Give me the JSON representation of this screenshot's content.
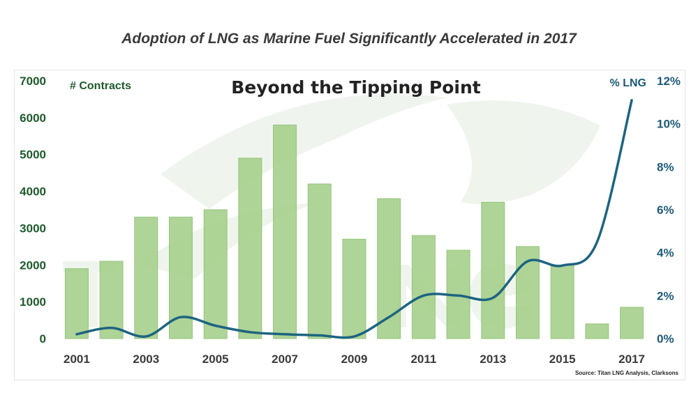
{
  "headline": "Adoption of LNG as Marine Fuel Significantly Accelerated in 2017",
  "colors": {
    "bar": "#a6d08c",
    "bar_edge": "#8cc06f",
    "line": "#1d6481",
    "left_axis": "#1e5a2c",
    "right_axis": "#1d5a78"
  },
  "chart_data": {
    "type": "bar",
    "title": "Beyond the Tipping Point",
    "categories": [
      "2001",
      "2002",
      "2003",
      "2004",
      "2005",
      "2006",
      "2007",
      "2008",
      "2009",
      "2010",
      "2011",
      "2012",
      "2013",
      "2014",
      "2015",
      "2016",
      "2017"
    ],
    "x_tick_labels": [
      "2001",
      "2003",
      "2005",
      "2007",
      "2009",
      "2011",
      "2013",
      "2015",
      "2017"
    ],
    "series": [
      {
        "name": "# Contracts",
        "type": "bar",
        "axis": "left",
        "values": [
          1900,
          2100,
          3300,
          3300,
          3500,
          4900,
          5800,
          4200,
          2700,
          3800,
          2800,
          2400,
          3700,
          2500,
          2000,
          400,
          850
        ]
      },
      {
        "name": "% LNG",
        "type": "line",
        "axis": "right",
        "values": [
          0.2,
          0.5,
          0.1,
          1.0,
          0.6,
          0.3,
          0.2,
          0.15,
          0.1,
          1.0,
          2.0,
          2.0,
          1.9,
          3.6,
          3.4,
          4.5,
          11.1
        ]
      }
    ],
    "left_axis": {
      "label": "# Contracts",
      "min": 0,
      "max": 7000,
      "ticks": [
        "0",
        "1000",
        "2000",
        "3000",
        "4000",
        "5000",
        "6000",
        "7000"
      ]
    },
    "right_axis": {
      "label": "% LNG",
      "min": 0,
      "max": 12,
      "ticks": [
        "0%",
        "2%",
        "4%",
        "6%",
        "8%",
        "10%",
        "12%"
      ]
    },
    "grid": false,
    "legend": "none",
    "source": "Source: Titan LNG Analysis, Clarksons"
  }
}
